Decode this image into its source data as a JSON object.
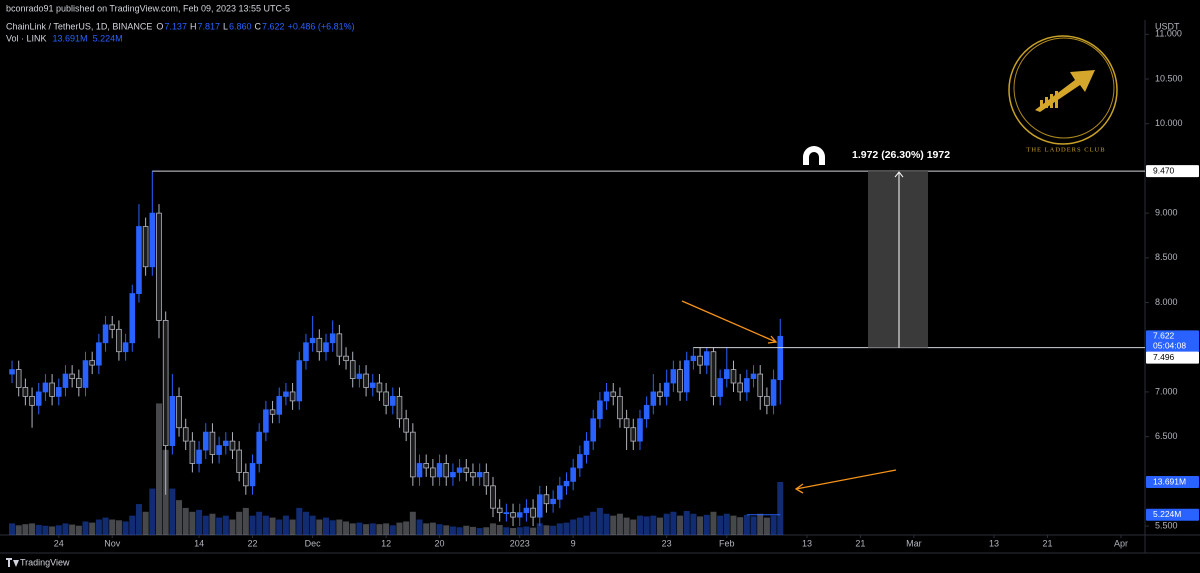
{
  "header": {
    "publisher": "bconrado91 published on TradingView.com, Feb 09, 2023 13:55 UTC-5",
    "symbol": "ChainLink / TetherUS, 1D, BINANCE",
    "ohlc": [
      {
        "key": "O",
        "value": "7.137"
      },
      {
        "key": "H",
        "value": "7.817"
      },
      {
        "key": "L",
        "value": "6.860"
      },
      {
        "key": "C",
        "value": "7.622"
      }
    ],
    "change": "+0.486 (+6.81%)",
    "volume_title": "Vol · LINK",
    "volume_value": "13.691M",
    "volume_ma": "5.224M"
  },
  "footer": "TradingView",
  "logo_text": "THE LADDERS CLUB",
  "chart_data": {
    "type": "candlestick",
    "unit": "USDT",
    "ylim": [
      5.4,
      11.16
    ],
    "yticks": [
      {
        "value": 5.5,
        "label": "5.500"
      },
      {
        "value": 6.5,
        "label": "6.500"
      },
      {
        "value": 7,
        "label": "7.000"
      },
      {
        "value": 8,
        "label": "8.000"
      },
      {
        "value": 8.5,
        "label": "8.500"
      },
      {
        "value": 9,
        "label": "9.000"
      },
      {
        "value": 10,
        "label": "10.000"
      },
      {
        "value": 10.5,
        "label": "10.500"
      },
      {
        "value": 11,
        "label": "11.000"
      }
    ],
    "xlim": [
      -1.8,
      169.6
    ],
    "xticks": [
      {
        "value": 7,
        "label": "24"
      },
      {
        "value": 15,
        "label": "Nov"
      },
      {
        "value": 28,
        "label": "14"
      },
      {
        "value": 36,
        "label": "22"
      },
      {
        "value": 45,
        "label": "Dec"
      },
      {
        "value": 56,
        "label": "12"
      },
      {
        "value": 64,
        "label": "20"
      },
      {
        "value": 76,
        "label": "2023"
      },
      {
        "value": 84,
        "label": "9"
      },
      {
        "value": 98,
        "label": "23"
      },
      {
        "value": 107,
        "label": "Feb"
      },
      {
        "value": 119,
        "label": "13"
      },
      {
        "value": 127,
        "label": "21"
      },
      {
        "value": 135,
        "label": "Mar"
      },
      {
        "value": 147,
        "label": "13"
      },
      {
        "value": 155,
        "label": "21"
      },
      {
        "value": 166,
        "label": "Apr"
      }
    ],
    "up_color": "#2962ff",
    "down_color": "#b2b5be",
    "open": [
      7.2,
      7.25,
      7.05,
      6.95,
      6.85,
      7.0,
      7.1,
      6.95,
      7.05,
      7.2,
      7.15,
      7.05,
      7.35,
      7.3,
      7.55,
      7.75,
      7.7,
      7.45,
      7.55,
      8.1,
      8.85,
      8.4,
      9.0,
      7.8,
      6.4,
      6.95,
      6.6,
      6.45,
      6.2,
      6.35,
      6.55,
      6.3,
      6.4,
      6.45,
      6.35,
      6.1,
      5.95,
      6.2,
      6.55,
      6.8,
      6.75,
      6.95,
      7.0,
      6.9,
      7.35,
      7.55,
      7.6,
      7.45,
      7.55,
      7.65,
      7.4,
      7.35,
      7.15,
      7.2,
      7.05,
      7.1,
      7.0,
      6.85,
      6.95,
      6.7,
      6.55,
      6.05,
      6.2,
      6.15,
      6.05,
      6.2,
      6.05,
      6.1,
      6.15,
      6.1,
      6.05,
      6.1,
      5.95,
      5.7,
      5.65,
      5.65,
      5.6,
      5.65,
      5.7,
      5.6,
      5.85,
      5.75,
      5.8,
      5.95,
      6.0,
      6.15,
      6.3,
      6.45,
      6.7,
      6.9,
      7.0,
      6.95,
      6.7,
      6.6,
      6.45,
      6.7,
      6.85,
      7.0,
      6.95,
      7.1,
      7.25,
      7.0,
      7.35,
      7.4,
      7.3,
      7.45,
      6.95,
      7.15,
      7.25,
      7.1,
      7.0,
      7.15,
      7.2,
      6.95,
      6.85,
      7.137
    ],
    "high": [
      7.35,
      7.35,
      7.15,
      7.05,
      7.1,
      7.2,
      7.2,
      7.15,
      7.3,
      7.3,
      7.25,
      7.45,
      7.45,
      7.65,
      7.85,
      7.85,
      7.8,
      7.65,
      8.2,
      9.1,
      8.95,
      9.47,
      9.1,
      7.9,
      7.2,
      7.05,
      6.7,
      6.55,
      6.45,
      6.65,
      6.65,
      6.5,
      6.55,
      6.55,
      6.45,
      6.2,
      6.3,
      6.65,
      6.9,
      6.9,
      7.05,
      7.1,
      7.1,
      7.45,
      7.65,
      7.85,
      7.7,
      7.65,
      7.8,
      7.75,
      7.5,
      7.45,
      7.3,
      7.3,
      7.2,
      7.2,
      7.1,
      7.05,
      7.05,
      6.8,
      6.65,
      6.3,
      6.3,
      6.25,
      6.3,
      6.3,
      6.2,
      6.25,
      6.25,
      6.2,
      6.2,
      6.2,
      6.05,
      5.8,
      5.75,
      5.75,
      5.75,
      5.8,
      5.8,
      5.95,
      5.95,
      5.9,
      6.05,
      6.1,
      6.25,
      6.4,
      6.55,
      6.8,
      7.0,
      7.1,
      7.1,
      7.05,
      6.8,
      6.7,
      6.8,
      6.95,
      7.2,
      7.1,
      7.25,
      7.35,
      7.35,
      7.45,
      7.5,
      7.5,
      7.5,
      7.5,
      7.25,
      7.5,
      7.35,
      7.2,
      7.25,
      7.3,
      7.3,
      7.05,
      7.25,
      7.817
    ],
    "low": [
      7.1,
      6.95,
      6.85,
      6.6,
      6.75,
      6.9,
      6.85,
      6.85,
      6.95,
      7.05,
      6.95,
      6.95,
      7.2,
      7.2,
      7.45,
      7.6,
      7.35,
      7.35,
      7.45,
      8.0,
      8.3,
      8.3,
      7.6,
      5.85,
      6.3,
      6.5,
      6.35,
      6.1,
      6.1,
      6.25,
      6.2,
      6.2,
      6.3,
      6.25,
      6.0,
      5.85,
      5.85,
      6.1,
      6.45,
      6.65,
      6.65,
      6.85,
      6.8,
      6.8,
      7.25,
      7.45,
      7.35,
      7.35,
      7.45,
      7.3,
      7.25,
      7.05,
      7.05,
      6.95,
      6.95,
      6.9,
      6.75,
      6.75,
      6.6,
      6.45,
      5.95,
      5.95,
      6.05,
      5.95,
      5.95,
      5.95,
      5.95,
      6.0,
      6.0,
      5.95,
      5.95,
      5.85,
      5.6,
      5.55,
      5.55,
      5.5,
      5.5,
      5.55,
      5.5,
      5.5,
      5.65,
      5.65,
      5.7,
      5.85,
      5.9,
      6.05,
      6.2,
      6.35,
      6.6,
      6.8,
      6.85,
      6.6,
      6.35,
      6.35,
      6.35,
      6.6,
      6.75,
      6.85,
      6.85,
      7.0,
      6.9,
      6.9,
      7.25,
      7.2,
      7.2,
      6.85,
      6.85,
      7.05,
      7.0,
      6.9,
      6.9,
      7.05,
      6.8,
      6.75,
      6.75,
      6.86
    ],
    "close": [
      7.25,
      7.05,
      6.95,
      6.85,
      7.0,
      7.1,
      6.95,
      7.05,
      7.2,
      7.15,
      7.05,
      7.35,
      7.3,
      7.55,
      7.75,
      7.7,
      7.45,
      7.55,
      8.1,
      8.85,
      8.4,
      9.0,
      7.8,
      6.4,
      6.95,
      6.6,
      6.45,
      6.2,
      6.35,
      6.55,
      6.3,
      6.4,
      6.45,
      6.35,
      6.1,
      5.95,
      6.2,
      6.55,
      6.8,
      6.75,
      6.95,
      7.0,
      6.9,
      7.35,
      7.55,
      7.6,
      7.45,
      7.55,
      7.65,
      7.4,
      7.35,
      7.15,
      7.2,
      7.05,
      7.1,
      7.0,
      6.85,
      6.95,
      6.7,
      6.55,
      6.05,
      6.2,
      6.15,
      6.05,
      6.2,
      6.05,
      6.1,
      6.15,
      6.1,
      6.05,
      6.1,
      5.95,
      5.7,
      5.65,
      5.65,
      5.6,
      5.65,
      5.7,
      5.6,
      5.85,
      5.75,
      5.8,
      5.95,
      6.0,
      6.15,
      6.3,
      6.45,
      6.7,
      6.9,
      7.0,
      6.95,
      6.7,
      6.6,
      6.45,
      6.7,
      6.85,
      7.0,
      6.95,
      7.1,
      7.25,
      7.0,
      7.35,
      7.4,
      7.3,
      7.45,
      6.95,
      7.15,
      7.25,
      7.1,
      7.0,
      7.15,
      7.2,
      6.95,
      6.85,
      7.137,
      7.622
    ],
    "volume": [
      3,
      2.5,
      2.8,
      3,
      2.6,
      2.4,
      2.2,
      2.5,
      3,
      2.7,
      2.4,
      3.5,
      3.2,
      4,
      4.5,
      4,
      3.8,
      3.5,
      5,
      8,
      6,
      12,
      34,
      22,
      12,
      9,
      7,
      6,
      6.5,
      5,
      5.5,
      4.5,
      5,
      4,
      6,
      7,
      5,
      6,
      5,
      4.5,
      4,
      5,
      4,
      7,
      6,
      5,
      4,
      4.5,
      3.8,
      4,
      3.5,
      3,
      3.2,
      2.8,
      3,
      2.8,
      3,
      2.5,
      3.2,
      3.5,
      6,
      4,
      3,
      3.2,
      2.8,
      2.5,
      2.2,
      2,
      2.4,
      2.1,
      1.8,
      2,
      3,
      2.6,
      2,
      1.8,
      2,
      2.2,
      1.9,
      3,
      2.5,
      2.4,
      3,
      3.2,
      4,
      4.5,
      5,
      6,
      7,
      5.5,
      5,
      5.5,
      4.5,
      4,
      5,
      4.8,
      5,
      4.5,
      5.5,
      6,
      5,
      6.2,
      5.5,
      4.8,
      5.2,
      6,
      5,
      5.5,
      5,
      4.6,
      5.2,
      4.8,
      5.5,
      4.5,
      5,
      13.691
    ],
    "volume_ma": 5.224,
    "last_price": {
      "value": 7.622,
      "label": "7.622"
    },
    "countdown": "05:04:08",
    "levels": [
      {
        "value": 9.47,
        "label": "9.470"
      },
      {
        "value": 7.496,
        "label": "7.496"
      }
    ],
    "measure_label": "1.972 (26.30%) 1972"
  }
}
